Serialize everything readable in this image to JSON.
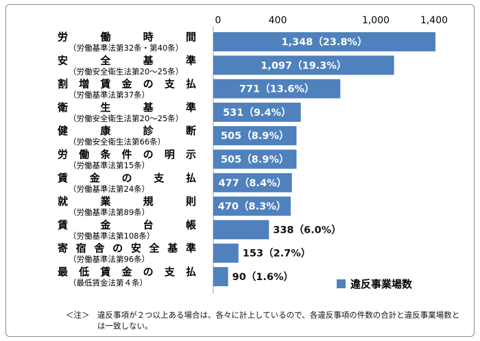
{
  "chart_data": {
    "type": "bar",
    "orientation": "horizontal",
    "categories": [
      {
        "label": "労　働　時　間",
        "sub": "（労働基準法第32条・第40条）"
      },
      {
        "label": "安　全　基　準",
        "sub": "（労働安全衛生法第20～25条）"
      },
      {
        "label": "割 増 賃 金 の 支 払",
        "sub": "（労働基準法第37条）"
      },
      {
        "label": "衛　生　基　準",
        "sub": "（労働安全衛生法第20～25条）"
      },
      {
        "label": "健　康　診　断",
        "sub": "（労働安全衛生法第66条）"
      },
      {
        "label": "労 働 条 件 の 明 示",
        "sub": "（労働基準法第15条）"
      },
      {
        "label": "賃　金　の　支　払",
        "sub": "（労働基準法第24条）"
      },
      {
        "label": "就　業　規　則",
        "sub": "（労働基準法第89条）"
      },
      {
        "label": "賃　金　台　帳",
        "sub": "（労働基準法第108条）"
      },
      {
        "label": "寄 宿 舎 の 安 全 基 準",
        "sub": "（労働基準法第96条）"
      },
      {
        "label": "最 低 賃 金 の 支 払",
        "sub": "（最低賃金法第４条）"
      }
    ],
    "series": [
      {
        "name": "違反事業場数",
        "color": "#4f81bd",
        "values": [
          1348,
          1097,
          771,
          531,
          505,
          505,
          477,
          470,
          338,
          153,
          90
        ],
        "labels": [
          "1,348（23.8%）",
          "1,097（19.3%）",
          "771（13.6%）",
          "531（9.4%）",
          "505（8.9%）",
          "505（8.9%）",
          "477（8.4%）",
          "470（8.3%）",
          "338（6.0%）",
          "153（2.7%）",
          "90（1.6%）"
        ]
      }
    ],
    "x_ticks": [
      "0",
      "400",
      "1,000",
      "1,400"
    ],
    "x_tick_values": [
      0,
      400,
      1000,
      1400
    ],
    "xlim": [
      0,
      1400
    ],
    "grid": false,
    "legend_position": "bottom-right"
  },
  "note": {
    "prefix": "＜注＞",
    "text": "違反事項が２つ以上ある場合は、各々に計上しているので、各違反事項の件数の合計と違反事業場数とは一致しない。"
  }
}
